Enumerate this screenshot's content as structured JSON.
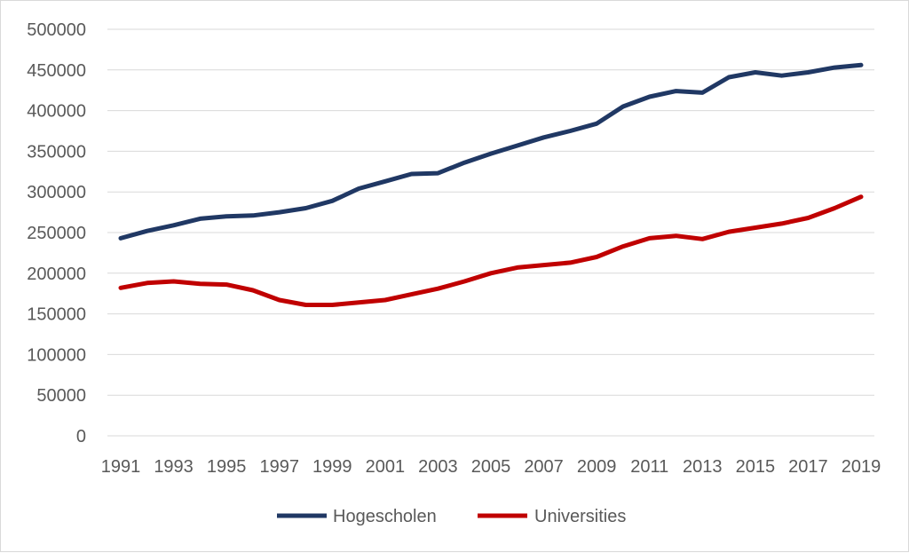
{
  "chart_data": {
    "type": "line",
    "title": "",
    "xlabel": "",
    "ylabel": "",
    "x": [
      1991,
      1992,
      1993,
      1994,
      1995,
      1996,
      1997,
      1998,
      1999,
      2000,
      2001,
      2002,
      2003,
      2004,
      2005,
      2006,
      2007,
      2008,
      2009,
      2010,
      2011,
      2012,
      2013,
      2014,
      2015,
      2016,
      2017,
      2018,
      2019
    ],
    "x_tick_labels": [
      "1991",
      "1993",
      "1995",
      "1997",
      "1999",
      "2001",
      "2003",
      "2005",
      "2007",
      "2009",
      "2011",
      "2013",
      "2015",
      "2017",
      "2019"
    ],
    "ylim": [
      0,
      500000
    ],
    "y_ticks": [
      0,
      50000,
      100000,
      150000,
      200000,
      250000,
      300000,
      350000,
      400000,
      450000,
      500000
    ],
    "y_tick_labels": [
      "0",
      "50000",
      "100000",
      "150000",
      "200000",
      "250000",
      "300000",
      "350000",
      "400000",
      "450000",
      "500000"
    ],
    "grid": "horizontal",
    "legend_position": "bottom",
    "series": [
      {
        "name": "Hogescholen",
        "color": "#203864",
        "values": [
          243000,
          252000,
          259000,
          267000,
          270000,
          271000,
          275000,
          280000,
          289000,
          304000,
          313000,
          322000,
          323000,
          336000,
          347000,
          357000,
          367000,
          375000,
          384000,
          405000,
          417000,
          424000,
          422000,
          441000,
          447000,
          443000,
          447000,
          453000,
          456000
        ]
      },
      {
        "name": "Universities",
        "color": "#c00000",
        "values": [
          182000,
          188000,
          190000,
          187000,
          186000,
          179000,
          167000,
          161000,
          161000,
          164000,
          167000,
          174000,
          181000,
          190000,
          200000,
          207000,
          210000,
          213000,
          220000,
          233000,
          243000,
          246000,
          242000,
          251000,
          256000,
          261000,
          268000,
          280000,
          294000
        ]
      }
    ]
  }
}
